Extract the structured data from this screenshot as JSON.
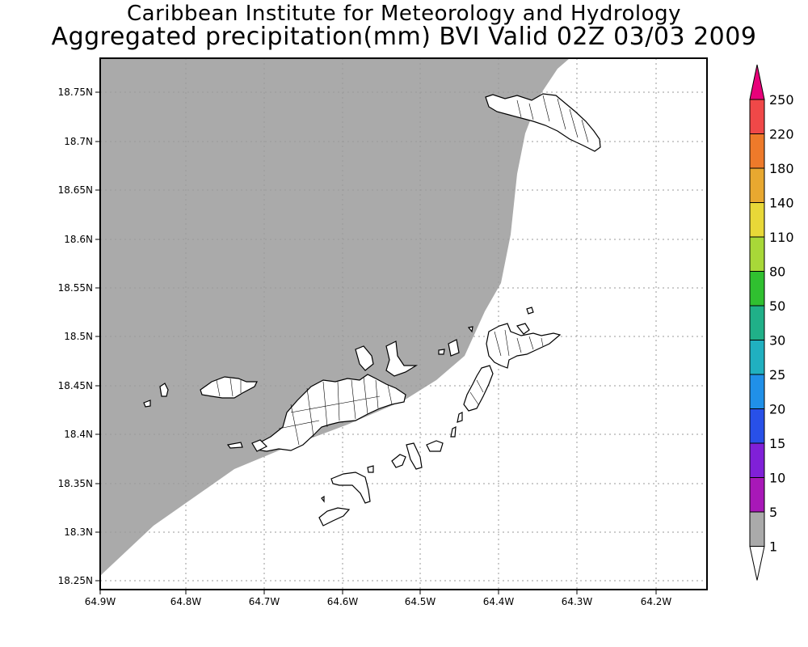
{
  "title": {
    "line1": "Caribbean Institute for Meteorology and Hydrology",
    "line2": "Aggregated precipitation(mm) BVI Valid 02Z 03/03 2009"
  },
  "map": {
    "lat_labels": [
      "18.75N",
      "18.7N",
      "18.65N",
      "18.6N",
      "18.55N",
      "18.5N",
      "18.45N",
      "18.4N",
      "18.35N",
      "18.3N",
      "18.25N"
    ],
    "lon_labels": [
      "64.9W",
      "64.8W",
      "64.7W",
      "64.6W",
      "64.5W",
      "64.4W",
      "64.3W",
      "64.2W"
    ],
    "shaded_region_color": "#aaaaaa",
    "grid": "dotted"
  },
  "colorbar": {
    "labels": [
      "250",
      "220",
      "180",
      "140",
      "110",
      "80",
      "50",
      "30",
      "25",
      "20",
      "15",
      "10",
      "5",
      "1"
    ],
    "colors": [
      "#e8007a",
      "#f04848",
      "#ee7a2a",
      "#e8a830",
      "#e8d838",
      "#a8d838",
      "#30c030",
      "#20b088",
      "#20b0c0",
      "#2090e8",
      "#2850e8",
      "#8020d8",
      "#a818b8",
      "#aaaaaa",
      "#ffffff"
    ]
  }
}
